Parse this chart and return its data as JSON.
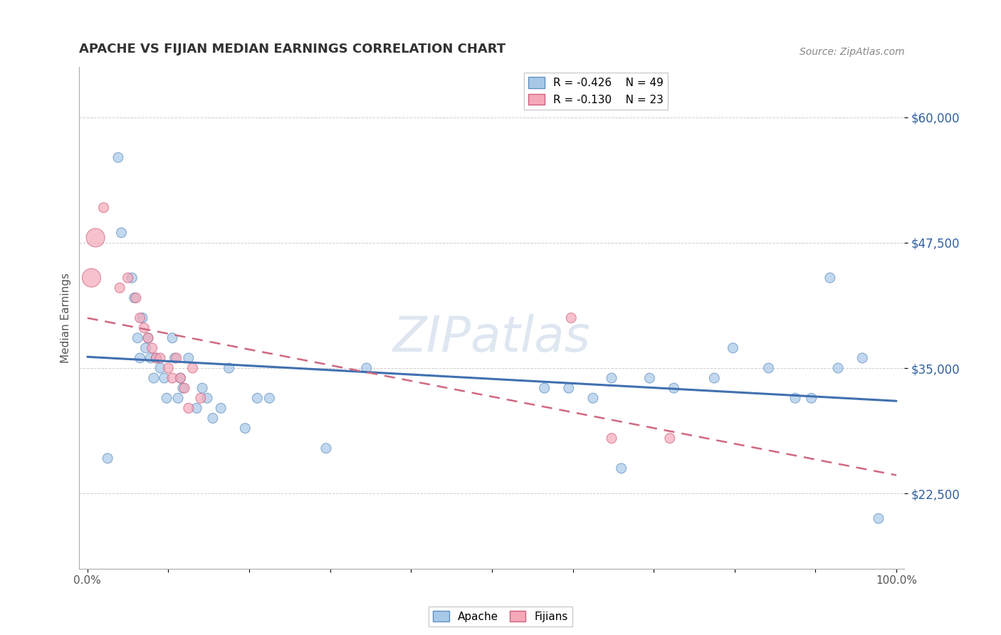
{
  "title": "APACHE VS FIJIAN MEDIAN EARNINGS CORRELATION CHART",
  "source": "Source: ZipAtlas.com",
  "ylabel": "Median Earnings",
  "xlabel": "",
  "xlim": [
    -0.01,
    1.01
  ],
  "ylim": [
    15000,
    65000
  ],
  "yticks": [
    22500,
    35000,
    47500,
    60000
  ],
  "ytick_labels": [
    "$22,500",
    "$35,000",
    "$47,500",
    "$60,000"
  ],
  "xticks": [
    0.0,
    0.1,
    0.2,
    0.3,
    0.4,
    0.5,
    0.6,
    0.7,
    0.8,
    0.9,
    1.0
  ],
  "xtick_labels": [
    "0.0%",
    "",
    "",
    "",
    "",
    "",
    "",
    "",
    "",
    "",
    "100.0%"
  ],
  "apache_color": "#A8C8E8",
  "fijian_color": "#F4A8B8",
  "apache_edge_color": "#6090C0",
  "fijian_edge_color": "#D06080",
  "apache_line_color": "#4070B0",
  "fijian_line_color": "#D06880",
  "ytick_color": "#3060A0",
  "legend_r_apache": "R = -0.426",
  "legend_n_apache": "N = 49",
  "legend_r_fijian": "R = -0.130",
  "legend_n_fijian": "N = 23",
  "watermark": "ZIPatlas",
  "apache_x": [
    0.025,
    0.038,
    0.042,
    0.055,
    0.058,
    0.062,
    0.065,
    0.068,
    0.072,
    0.075,
    0.078,
    0.082,
    0.085,
    0.09,
    0.095,
    0.098,
    0.105,
    0.108,
    0.112,
    0.115,
    0.118,
    0.125,
    0.135,
    0.142,
    0.148,
    0.155,
    0.165,
    0.175,
    0.195,
    0.21,
    0.225,
    0.295,
    0.345,
    0.565,
    0.595,
    0.625,
    0.648,
    0.66,
    0.695,
    0.725,
    0.775,
    0.798,
    0.842,
    0.875,
    0.895,
    0.918,
    0.928,
    0.958,
    0.978
  ],
  "apache_y": [
    26000,
    56000,
    48500,
    44000,
    42000,
    38000,
    36000,
    40000,
    37000,
    38000,
    36000,
    34000,
    36000,
    35000,
    34000,
    32000,
    38000,
    36000,
    32000,
    34000,
    33000,
    36000,
    31000,
    33000,
    32000,
    30000,
    31000,
    35000,
    29000,
    32000,
    32000,
    27000,
    35000,
    33000,
    33000,
    32000,
    34000,
    25000,
    34000,
    33000,
    34000,
    37000,
    35000,
    32000,
    32000,
    44000,
    35000,
    36000,
    20000
  ],
  "fijian_x": [
    0.005,
    0.01,
    0.02,
    0.04,
    0.05,
    0.06,
    0.065,
    0.07,
    0.075,
    0.08,
    0.085,
    0.09,
    0.1,
    0.105,
    0.11,
    0.115,
    0.12,
    0.125,
    0.13,
    0.14,
    0.598,
    0.648,
    0.72
  ],
  "fijian_y": [
    44000,
    48000,
    51000,
    43000,
    44000,
    42000,
    40000,
    39000,
    38000,
    37000,
    36000,
    36000,
    35000,
    34000,
    36000,
    34000,
    33000,
    31000,
    35000,
    32000,
    40000,
    28000,
    28000
  ],
  "apache_size": 100,
  "fijian_size": 100,
  "large_size": 350,
  "title_fontsize": 13,
  "label_fontsize": 11,
  "tick_fontsize": 11,
  "source_fontsize": 10
}
